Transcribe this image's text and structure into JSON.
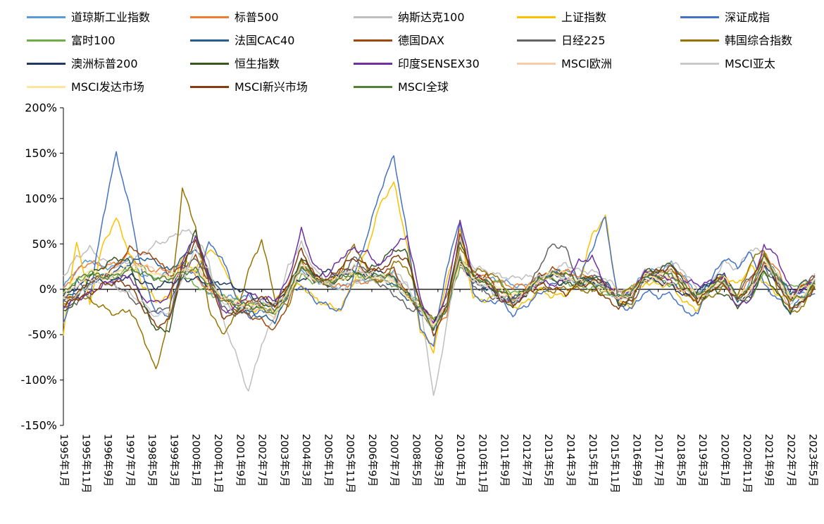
{
  "figure": {
    "background": "#FFFFFF"
  },
  "chart_data": {
    "type": "line",
    "title": "",
    "xlabel": "",
    "ylabel": "",
    "y_unit": "%",
    "ylim": [
      -150,
      200
    ],
    "grid": false,
    "legend_position": "top",
    "y_ticks": [
      "200%",
      "150%",
      "100%",
      "50%",
      "0%",
      "-50%",
      "-100%",
      "-150%"
    ],
    "x_tick_labels": [
      "1995年1月",
      "1995年11月",
      "1996年9月",
      "1997年7月",
      "1998年5月",
      "1999年3月",
      "2000年1月",
      "2000年11月",
      "2001年9月",
      "2002年7月",
      "2003年5月",
      "2004年3月",
      "2005年1月",
      "2005年11月",
      "2006年9月",
      "2007年7月",
      "2008年5月",
      "2009年3月",
      "2010年1月",
      "2010年11月",
      "2011年9月",
      "2012年7月",
      "2013年5月",
      "2014年3月",
      "2015年1月",
      "2015年11月",
      "2016年9月",
      "2017年7月",
      "2018年5月",
      "2019年3月",
      "2020年1月",
      "2020年11月",
      "2021年9月",
      "2022年7月",
      "2023年5月"
    ],
    "x_tick_month_step": 10,
    "x": [
      1995,
      1995.5,
      1996,
      1996.5,
      1997,
      1997.5,
      1998,
      1998.5,
      1999,
      1999.5,
      2000,
      2000.5,
      2001,
      2001.5,
      2002,
      2002.5,
      2003,
      2003.5,
      2004,
      2004.5,
      2005,
      2005.5,
      2006,
      2006.5,
      2007,
      2007.5,
      2008,
      2008.5,
      2009,
      2009.5,
      2010,
      2010.5,
      2011,
      2011.5,
      2012,
      2012.5,
      2013,
      2013.5,
      2014,
      2014.5,
      2015,
      2015.5,
      2016,
      2016.5,
      2017,
      2017.5,
      2018,
      2018.5,
      2019,
      2019.5,
      2020,
      2020.5,
      2021,
      2021.5,
      2022,
      2022.5,
      2023,
      2023.4
    ],
    "series": [
      {
        "name": "道琼斯工业指数",
        "color": "#5B9BD5",
        "values": [
          2,
          22,
          33,
          24,
          26,
          35,
          15,
          12,
          18,
          28,
          18,
          -5,
          -8,
          -10,
          -8,
          -18,
          -15,
          5,
          22,
          12,
          3,
          2,
          8,
          10,
          15,
          18,
          -8,
          -15,
          -40,
          -25,
          30,
          18,
          12,
          10,
          5,
          3,
          10,
          18,
          22,
          12,
          10,
          2,
          -5,
          -2,
          20,
          20,
          28,
          12,
          -5,
          8,
          12,
          -12,
          8,
          35,
          16,
          -8,
          -5,
          3
        ]
      },
      {
        "name": "标普500",
        "color": "#ED7D31",
        "values": [
          0,
          20,
          30,
          25,
          28,
          38,
          25,
          20,
          22,
          25,
          15,
          -2,
          -10,
          -15,
          -12,
          -20,
          -25,
          5,
          25,
          12,
          5,
          3,
          8,
          8,
          12,
          16,
          -8,
          -15,
          -42,
          -28,
          35,
          20,
          12,
          8,
          3,
          5,
          12,
          18,
          20,
          15,
          12,
          2,
          -3,
          0,
          16,
          15,
          22,
          12,
          -8,
          5,
          15,
          -10,
          12,
          40,
          22,
          -12,
          -8,
          2
        ]
      },
      {
        "name": "纳斯达克100",
        "color": "#BFBFBF",
        "values": [
          15,
          35,
          45,
          32,
          25,
          30,
          38,
          50,
          55,
          65,
          60,
          30,
          -30,
          -70,
          -113,
          -60,
          -30,
          25,
          50,
          22,
          5,
          0,
          8,
          12,
          8,
          20,
          5,
          -12,
          -120,
          -40,
          55,
          25,
          20,
          15,
          12,
          15,
          8,
          20,
          28,
          20,
          20,
          12,
          0,
          -3,
          20,
          22,
          30,
          20,
          -2,
          8,
          30,
          22,
          45,
          40,
          12,
          -25,
          -12,
          18
        ]
      },
      {
        "name": "上证指数",
        "color": "#FFC000",
        "values": [
          -48,
          55,
          -15,
          50,
          78,
          40,
          5,
          -12,
          -10,
          35,
          20,
          45,
          30,
          -5,
          -25,
          -20,
          -12,
          0,
          5,
          -10,
          -18,
          -22,
          10,
          45,
          95,
          117,
          50,
          -45,
          -68,
          10,
          65,
          -10,
          -12,
          -5,
          -20,
          -15,
          0,
          -8,
          -5,
          5,
          60,
          80,
          -15,
          -18,
          8,
          5,
          5,
          -15,
          -22,
          5,
          15,
          5,
          25,
          8,
          -5,
          -12,
          8,
          5
        ]
      },
      {
        "name": "深证成指",
        "color": "#4472C4",
        "values": [
          -40,
          10,
          -10,
          80,
          150,
          90,
          15,
          -25,
          -30,
          25,
          15,
          50,
          35,
          -5,
          -30,
          -25,
          -18,
          -8,
          5,
          -12,
          -18,
          -25,
          15,
          60,
          110,
          147,
          60,
          -45,
          -62,
          25,
          75,
          -5,
          -15,
          -12,
          -28,
          -18,
          -5,
          5,
          8,
          10,
          45,
          80,
          -18,
          -22,
          -2,
          -8,
          -5,
          -25,
          -28,
          10,
          35,
          25,
          40,
          5,
          -10,
          -25,
          -5,
          -8
        ]
      },
      {
        "name": "富时100",
        "color": "#70AD47",
        "values": [
          -5,
          8,
          18,
          12,
          15,
          22,
          25,
          10,
          10,
          15,
          5,
          -5,
          -8,
          -12,
          -15,
          -20,
          -28,
          -5,
          15,
          8,
          8,
          12,
          18,
          12,
          10,
          5,
          -5,
          -15,
          -35,
          -18,
          25,
          12,
          10,
          8,
          -5,
          0,
          8,
          12,
          8,
          2,
          2,
          -5,
          -8,
          2,
          15,
          10,
          5,
          2,
          -5,
          2,
          5,
          -18,
          -10,
          18,
          15,
          2,
          5,
          3
        ]
      },
      {
        "name": "法国CAC40",
        "color": "#255E91",
        "values": [
          -10,
          -5,
          5,
          15,
          20,
          28,
          35,
          30,
          20,
          35,
          45,
          15,
          -5,
          -20,
          -25,
          -30,
          -35,
          -8,
          25,
          12,
          8,
          18,
          22,
          15,
          12,
          5,
          -10,
          -25,
          -40,
          -22,
          30,
          8,
          2,
          -5,
          -15,
          -5,
          10,
          18,
          15,
          5,
          10,
          8,
          -10,
          -5,
          15,
          12,
          5,
          0,
          -8,
          8,
          12,
          -15,
          -5,
          30,
          18,
          -5,
          8,
          8
        ]
      },
      {
        "name": "德国DAX",
        "color": "#9E480E",
        "values": [
          -12,
          -5,
          8,
          15,
          25,
          45,
          40,
          35,
          15,
          25,
          35,
          10,
          -10,
          -22,
          -28,
          -35,
          -45,
          -15,
          35,
          15,
          8,
          20,
          25,
          20,
          20,
          22,
          -5,
          -25,
          -42,
          -20,
          35,
          12,
          15,
          -2,
          -12,
          0,
          15,
          22,
          18,
          8,
          15,
          5,
          -12,
          -5,
          20,
          15,
          8,
          -5,
          -12,
          5,
          15,
          -10,
          0,
          28,
          12,
          -10,
          5,
          12
        ]
      },
      {
        "name": "日经225",
        "color": "#636363",
        "values": [
          -12,
          -18,
          8,
          15,
          5,
          -8,
          -20,
          -25,
          -18,
          15,
          35,
          15,
          -20,
          -28,
          -25,
          -18,
          -25,
          -5,
          25,
          10,
          5,
          12,
          35,
          20,
          5,
          -5,
          -20,
          -25,
          -38,
          -15,
          30,
          5,
          -5,
          -12,
          -10,
          -5,
          25,
          50,
          45,
          8,
          15,
          10,
          -15,
          -18,
          15,
          20,
          15,
          5,
          -12,
          -2,
          10,
          -5,
          15,
          25,
          5,
          -8,
          2,
          15
        ]
      },
      {
        "name": "韩国综合指数",
        "color": "#997300",
        "values": [
          -15,
          -8,
          -12,
          -20,
          -28,
          -22,
          -50,
          -90,
          -30,
          110,
          70,
          -20,
          -50,
          -30,
          20,
          55,
          -10,
          -20,
          30,
          15,
          5,
          20,
          50,
          20,
          5,
          30,
          25,
          -15,
          -35,
          -10,
          45,
          20,
          20,
          10,
          -12,
          -5,
          0,
          -2,
          2,
          0,
          -3,
          -2,
          -8,
          2,
          8,
          18,
          22,
          -5,
          -15,
          -8,
          2,
          -8,
          30,
          45,
          0,
          -25,
          -20,
          8
        ]
      },
      {
        "name": "澳洲标普200",
        "color": "#1F3864",
        "values": [
          -8,
          2,
          12,
          8,
          10,
          15,
          8,
          2,
          8,
          10,
          12,
          5,
          8,
          2,
          -5,
          -12,
          -15,
          -2,
          12,
          15,
          20,
          15,
          18,
          15,
          20,
          12,
          -5,
          -20,
          -35,
          -15,
          30,
          8,
          2,
          -8,
          -12,
          -2,
          12,
          15,
          10,
          8,
          8,
          2,
          -10,
          -2,
          12,
          8,
          5,
          -8,
          -2,
          8,
          18,
          -12,
          -5,
          25,
          10,
          -8,
          0,
          5
        ]
      },
      {
        "name": "恒生指数",
        "color": "#385723",
        "values": [
          -25,
          -12,
          15,
          25,
          35,
          30,
          -15,
          -45,
          -45,
          20,
          65,
          15,
          -10,
          -25,
          -20,
          -15,
          -20,
          0,
          35,
          15,
          5,
          10,
          15,
          20,
          30,
          45,
          40,
          -20,
          -45,
          -15,
          55,
          15,
          5,
          -10,
          -18,
          -5,
          15,
          10,
          5,
          8,
          15,
          5,
          -18,
          -10,
          20,
          20,
          30,
          5,
          -12,
          -2,
          -5,
          -18,
          -8,
          20,
          -5,
          -25,
          -10,
          5
        ]
      },
      {
        "name": "印度SENSEX30",
        "color": "#7030A0",
        "values": [
          -20,
          -10,
          -5,
          5,
          10,
          15,
          -10,
          -15,
          -8,
          30,
          60,
          15,
          -25,
          -20,
          -5,
          -10,
          -12,
          10,
          65,
          25,
          15,
          35,
          45,
          40,
          25,
          45,
          60,
          -10,
          -40,
          -5,
          75,
          15,
          10,
          -10,
          -12,
          -5,
          8,
          5,
          10,
          30,
          35,
          5,
          -10,
          -2,
          18,
          15,
          12,
          10,
          5,
          8,
          12,
          -20,
          -10,
          50,
          35,
          0,
          -2,
          12
        ]
      },
      {
        "name": "MSCI欧洲",
        "color": "#F8CBAD",
        "values": [
          -8,
          5,
          12,
          10,
          18,
          22,
          28,
          20,
          12,
          20,
          25,
          5,
          -8,
          -15,
          -18,
          -22,
          -30,
          -8,
          20,
          10,
          8,
          15,
          20,
          15,
          12,
          8,
          -8,
          -20,
          -38,
          -20,
          28,
          8,
          5,
          -5,
          -12,
          -5,
          10,
          15,
          12,
          5,
          5,
          0,
          -10,
          -5,
          12,
          10,
          5,
          -2,
          -10,
          2,
          8,
          -12,
          -5,
          28,
          12,
          -8,
          2,
          8
        ]
      },
      {
        "name": "MSCI亚太",
        "color": "#C9C9C9",
        "values": [
          -12,
          -8,
          5,
          8,
          2,
          -5,
          -15,
          -30,
          -25,
          10,
          45,
          20,
          -15,
          -25,
          -22,
          -12,
          -18,
          -2,
          30,
          12,
          5,
          15,
          25,
          18,
          15,
          10,
          5,
          -25,
          -42,
          -15,
          40,
          10,
          2,
          -10,
          -15,
          -5,
          15,
          18,
          12,
          5,
          8,
          0,
          -12,
          -5,
          15,
          18,
          20,
          2,
          -10,
          0,
          8,
          -10,
          2,
          35,
          10,
          -15,
          -8,
          8
        ]
      },
      {
        "name": "MSCI发达市场",
        "color": "#FFE699",
        "values": [
          -2,
          12,
          20,
          15,
          18,
          25,
          22,
          15,
          15,
          20,
          20,
          5,
          -10,
          -15,
          -18,
          -20,
          -25,
          -5,
          25,
          12,
          8,
          12,
          15,
          12,
          15,
          10,
          -8,
          -20,
          -42,
          -22,
          32,
          15,
          8,
          0,
          -8,
          0,
          10,
          18,
          18,
          8,
          8,
          0,
          -8,
          -2,
          15,
          15,
          15,
          5,
          -8,
          2,
          12,
          -8,
          2,
          35,
          15,
          -10,
          -8,
          8
        ]
      },
      {
        "name": "MSCI新兴市场",
        "color": "#843C0C",
        "values": [
          -18,
          -10,
          -5,
          5,
          8,
          5,
          -20,
          -40,
          -35,
          25,
          55,
          10,
          -30,
          -28,
          -15,
          -8,
          -18,
          5,
          45,
          15,
          10,
          25,
          35,
          25,
          20,
          35,
          35,
          -15,
          -50,
          -20,
          60,
          15,
          10,
          -10,
          -18,
          -5,
          5,
          2,
          -5,
          5,
          5,
          -10,
          -20,
          -10,
          15,
          20,
          25,
          2,
          -12,
          0,
          5,
          -12,
          5,
          40,
          8,
          -20,
          -15,
          2
        ]
      },
      {
        "name": "MSCI全球",
        "color": "#538135",
        "values": [
          -5,
          10,
          18,
          13,
          15,
          22,
          18,
          12,
          12,
          18,
          22,
          5,
          -12,
          -16,
          -18,
          -22,
          -26,
          -6,
          26,
          12,
          8,
          13,
          17,
          13,
          16,
          12,
          -6,
          -20,
          -43,
          -22,
          34,
          14,
          8,
          -2,
          -10,
          -1,
          10,
          17,
          17,
          7,
          7,
          -1,
          -9,
          -3,
          14,
          15,
          16,
          4,
          -8,
          2,
          11,
          -9,
          2,
          36,
          14,
          -11,
          -9,
          7
        ]
      }
    ]
  }
}
